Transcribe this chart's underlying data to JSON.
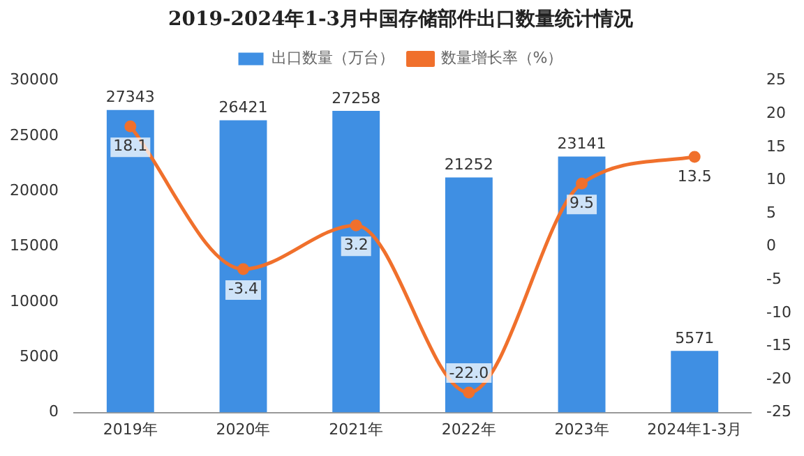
{
  "chart_data": {
    "type": "bar",
    "title": "2019-2024年1-3月中国存储部件出口数量统计情况",
    "categories": [
      "2019年",
      "2020年",
      "2021年",
      "2022年",
      "2023年",
      "2024年1-3月"
    ],
    "series": [
      {
        "name": "出口数量（万台）",
        "color": "#3f8fe3",
        "values": [
          27343,
          26421,
          27258,
          21252,
          23141,
          5571
        ]
      },
      {
        "name": "数量增长率（%）",
        "type": "line",
        "axis": "y2",
        "color": "#f0702c",
        "values": [
          18.1,
          -3.4,
          3.2,
          -22.0,
          9.5,
          13.5
        ],
        "value_labels": [
          "18.1",
          "-3.4",
          "3.2",
          "-22.0",
          "9.5",
          "13.5"
        ]
      }
    ],
    "ylim": [
      0,
      30000
    ],
    "yticks": [
      0,
      5000,
      10000,
      15000,
      20000,
      25000,
      30000
    ],
    "y2lim": [
      -25,
      25
    ],
    "y2ticks": [
      -25,
      -20,
      -15,
      -10,
      -5,
      0,
      5,
      10,
      15,
      20,
      25
    ],
    "data_labels": true,
    "legend": "top",
    "grid": false,
    "marker": "circle",
    "line_style": "solid"
  }
}
